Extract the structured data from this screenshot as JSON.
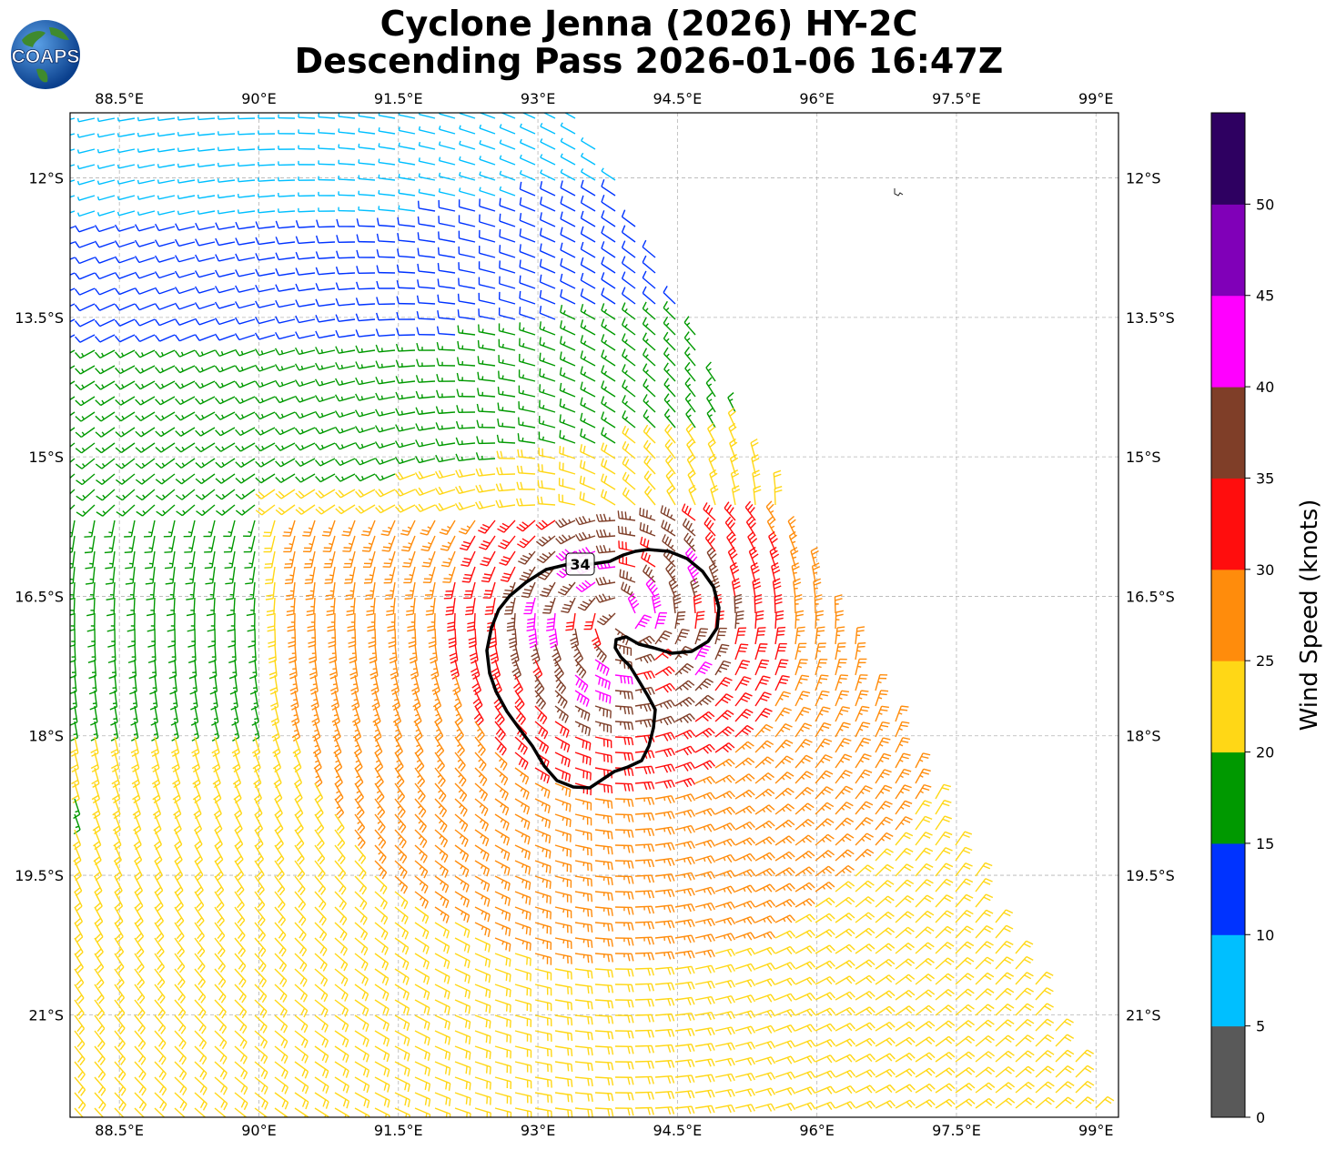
{
  "title": {
    "line1": "Cyclone Jenna (2026) HY-2C",
    "line2": "Descending Pass 2026-01-06 16:47Z"
  },
  "logo": {
    "text": "COAPS",
    "icon": "globe-logo-icon"
  },
  "map": {
    "lon_ticks": [
      "88.5°E",
      "90°E",
      "91.5°E",
      "93°E",
      "94.5°E",
      "96°E",
      "97.5°E",
      "99°E"
    ],
    "lat_ticks": [
      "12°S",
      "13.5°S",
      "15°S",
      "16.5°S",
      "18°S",
      "19.5°S",
      "21°S"
    ],
    "gridlines": true,
    "contour_label": "34",
    "storm_center": {
      "lon": 93.9,
      "lat": -16.75
    }
  },
  "colorbar": {
    "label": "Wind Speed (knots)",
    "ticks": [
      "0",
      "5",
      "10",
      "15",
      "20",
      "25",
      "30",
      "35",
      "40",
      "45",
      "50"
    ],
    "colors": [
      "#595959",
      "#00bfff",
      "#0033ff",
      "#009900",
      "#ffd716",
      "#ff8c0c",
      "#ff0d0d",
      "#7f3e28",
      "#ff00ff",
      "#8000b8",
      "#2e0061"
    ]
  }
}
